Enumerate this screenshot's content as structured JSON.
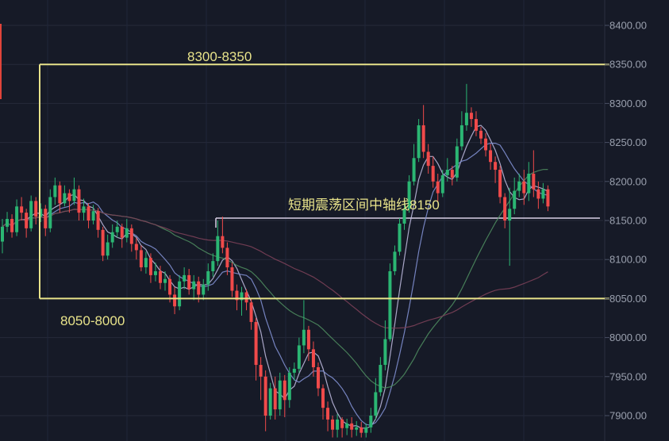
{
  "chart_data": {
    "type": "candlestick",
    "ylim": [
      7870,
      8420
    ],
    "y_ticks": [
      "8400.00",
      "8350.00",
      "8300.00",
      "8250.00",
      "8200.00",
      "8150.00",
      "8100.00",
      "8050.00",
      "8000.00",
      "7950.00",
      "7900.00"
    ],
    "highlighted_levels": [
      8350,
      8050
    ],
    "annotations": {
      "upper_range": "8300-8350",
      "lower_range": "8050-8000",
      "midline": "短期震荡区间中轴线8150"
    },
    "midline_value": 8153,
    "colors": {
      "up": "#2bb673",
      "down": "#f04a4a",
      "box": "#e8e38a",
      "midline": "#d9d0e6",
      "ma_short": "#b9b6d9",
      "ma_mid": "#7f8fd0",
      "ma_long": "#4c8a5e",
      "ma_xlong": "#7a4058",
      "grid": "#262b3a",
      "axis_text": "#9aa0ae"
    },
    "candles": [
      [
        8123,
        8142,
        8152,
        8108
      ],
      [
        8142,
        8152,
        8161,
        8135
      ],
      [
        8152,
        8135,
        8158,
        8128
      ],
      [
        8135,
        8168,
        8177,
        8130
      ],
      [
        8168,
        8160,
        8180,
        8150
      ],
      [
        8160,
        8140,
        8165,
        8128
      ],
      [
        8140,
        8175,
        8182,
        8136
      ],
      [
        8175,
        8155,
        8180,
        8145
      ],
      [
        8155,
        8165,
        8172,
        8148
      ],
      [
        8165,
        8140,
        8170,
        8130
      ],
      [
        8140,
        8180,
        8190,
        8135
      ],
      [
        8180,
        8195,
        8205,
        8170
      ],
      [
        8195,
        8172,
        8200,
        8160
      ],
      [
        8172,
        8185,
        8195,
        8168
      ],
      [
        8185,
        8175,
        8190,
        8160
      ],
      [
        8175,
        8190,
        8205,
        8170
      ],
      [
        8190,
        8160,
        8195,
        8150
      ],
      [
        8160,
        8168,
        8178,
        8150
      ],
      [
        8168,
        8150,
        8172,
        8140
      ],
      [
        8150,
        8162,
        8170,
        8145
      ],
      [
        8162,
        8138,
        8166,
        8128
      ],
      [
        8138,
        8105,
        8142,
        8098
      ],
      [
        8105,
        8122,
        8132,
        8100
      ],
      [
        8122,
        8135,
        8145,
        8115
      ],
      [
        8135,
        8142,
        8150,
        8128
      ],
      [
        8142,
        8128,
        8146,
        8115
      ],
      [
        8128,
        8140,
        8152,
        8122
      ],
      [
        8140,
        8120,
        8145,
        8110
      ],
      [
        8120,
        8112,
        8128,
        8100
      ],
      [
        8112,
        8090,
        8118,
        8085
      ],
      [
        8090,
        8102,
        8110,
        8082
      ],
      [
        8102,
        8080,
        8108,
        8070
      ],
      [
        8080,
        8085,
        8096,
        8072
      ],
      [
        8085,
        8070,
        8092,
        8062
      ],
      [
        8070,
        8075,
        8085,
        8060
      ],
      [
        8075,
        8055,
        8080,
        8045
      ],
      [
        8055,
        8040,
        8065,
        8030
      ],
      [
        8040,
        8072,
        8080,
        8035
      ],
      [
        8072,
        8080,
        8090,
        8062
      ],
      [
        8080,
        8062,
        8088,
        8055
      ],
      [
        8062,
        8072,
        8080,
        8048
      ],
      [
        8072,
        8055,
        8078,
        8045
      ],
      [
        8055,
        8068,
        8075,
        8048
      ],
      [
        8068,
        8085,
        8095,
        8060
      ],
      [
        8085,
        8098,
        8108,
        8078
      ],
      [
        8098,
        8130,
        8150,
        8092
      ],
      [
        8130,
        8115,
        8155,
        8108
      ],
      [
        8115,
        8090,
        8122,
        8080
      ],
      [
        8090,
        8060,
        8096,
        8052
      ],
      [
        8060,
        8048,
        8068,
        8035
      ],
      [
        8048,
        8058,
        8065,
        8028
      ],
      [
        8058,
        8045,
        8062,
        8035
      ],
      [
        8045,
        8020,
        8050,
        8010
      ],
      [
        8020,
        7965,
        8025,
        7945
      ],
      [
        7965,
        7950,
        7975,
        7920
      ],
      [
        7950,
        7900,
        7958,
        7880
      ],
      [
        7900,
        7935,
        7942,
        7895
      ],
      [
        7935,
        7908,
        7950,
        7895
      ],
      [
        7908,
        7945,
        7955,
        7900
      ],
      [
        7945,
        7920,
        7952,
        7898
      ],
      [
        7920,
        7955,
        7962,
        7910
      ],
      [
        7955,
        7960,
        7968,
        7945
      ],
      [
        7960,
        7990,
        8000,
        7955
      ],
      [
        7990,
        8010,
        8048,
        7980
      ],
      [
        8010,
        7985,
        8015,
        7970
      ],
      [
        7985,
        7962,
        7995,
        7950
      ],
      [
        7962,
        7935,
        7968,
        7925
      ],
      [
        7935,
        7910,
        7940,
        7895
      ],
      [
        7910,
        7895,
        7918,
        7880
      ],
      [
        7895,
        7882,
        7900,
        7872
      ],
      [
        7882,
        7895,
        7902,
        7872
      ],
      [
        7895,
        7884,
        7898,
        7872
      ],
      [
        7884,
        7890,
        7896,
        7875
      ],
      [
        7890,
        7882,
        7898,
        7872
      ],
      [
        7882,
        7885,
        7893,
        7874
      ],
      [
        7885,
        7878,
        7892,
        7872
      ],
      [
        7878,
        7885,
        7890,
        7872
      ],
      [
        7885,
        7900,
        7910,
        7878
      ],
      [
        7900,
        7930,
        7948,
        7895
      ],
      [
        7930,
        7965,
        7975,
        7925
      ],
      [
        7965,
        7998,
        8022,
        7958
      ],
      [
        7998,
        8085,
        8095,
        7995
      ],
      [
        8085,
        8110,
        8118,
        8080
      ],
      [
        8110,
        8146,
        8153,
        8105
      ],
      [
        8146,
        8165,
        8178,
        8138
      ],
      [
        8165,
        8200,
        8208,
        8160
      ],
      [
        8200,
        8230,
        8248,
        8195
      ],
      [
        8230,
        8272,
        8280,
        8225
      ],
      [
        8272,
        8238,
        8298,
        8230
      ],
      [
        8238,
        8220,
        8248,
        8210
      ],
      [
        8220,
        8200,
        8232,
        8192
      ],
      [
        8200,
        8185,
        8210,
        8175
      ],
      [
        8185,
        8208,
        8215,
        8180
      ],
      [
        8208,
        8215,
        8230,
        8200
      ],
      [
        8215,
        8205,
        8220,
        8195
      ],
      [
        8205,
        8245,
        8255,
        8200
      ],
      [
        8245,
        8272,
        8290,
        8240
      ],
      [
        8272,
        8288,
        8325,
        8265
      ],
      [
        8288,
        8280,
        8295,
        8270
      ],
      [
        8280,
        8265,
        8290,
        8258
      ],
      [
        8265,
        8255,
        8270,
        8248
      ],
      [
        8255,
        8240,
        8262,
        8232
      ],
      [
        8240,
        8225,
        8248,
        8215
      ],
      [
        8225,
        8215,
        8232,
        8198
      ],
      [
        8215,
        8180,
        8220,
        8172
      ],
      [
        8180,
        8150,
        8185,
        8140
      ],
      [
        8150,
        8165,
        8192,
        8092
      ],
      [
        8165,
        8188,
        8205,
        8158
      ],
      [
        8188,
        8200,
        8210,
        8180
      ],
      [
        8200,
        8185,
        8215,
        8170
      ],
      [
        8185,
        8210,
        8225,
        8175
      ],
      [
        8210,
        8190,
        8240,
        8180
      ],
      [
        8190,
        8178,
        8200,
        8165
      ],
      [
        8178,
        8190,
        8198,
        8172
      ],
      [
        8190,
        8168,
        8195,
        8162
      ]
    ]
  }
}
